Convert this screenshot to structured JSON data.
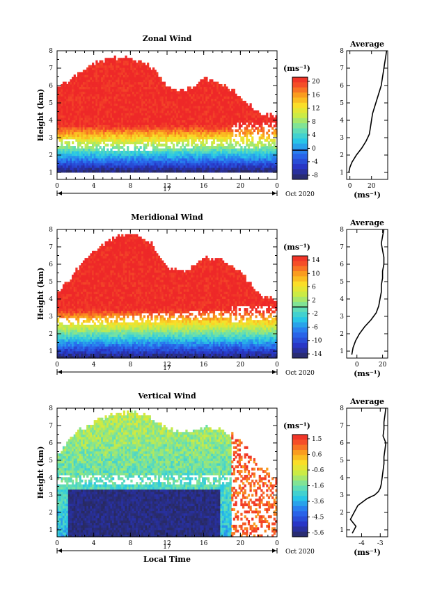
{
  "chart_data": [
    {
      "type": "heatmap",
      "title": "Zonal Wind",
      "ylabel": "Height (km)",
      "xlabel": "",
      "xlim": [
        0,
        24
      ],
      "ylim": [
        0.6,
        8.0
      ],
      "x_ticks": [
        "0",
        "4",
        "8",
        "12",
        "16",
        "20",
        "0"
      ],
      "y_ticks": [
        "1",
        "2",
        "3",
        "4",
        "5",
        "6",
        "7",
        "8"
      ],
      "date_label": "17",
      "month_label": "Oct 2020",
      "unit": "(ms⁻¹)",
      "colorbar": {
        "min": -8,
        "max": 20,
        "ticks": [
          "20",
          "16",
          "12",
          "8",
          "4",
          "0",
          "-4",
          "-8"
        ],
        "zero_line": 0
      },
      "field": {
        "low": -8,
        "high": 20,
        "base": 1.0,
        "shear_top": 3.9,
        "boundary": [
          2.2,
          2.0,
          1.9,
          1.95,
          2.05,
          2.2,
          2.15,
          2.35
        ]
      },
      "data_top": [
        5.8,
        6.6,
        7.3,
        7.6,
        7.6,
        7.2,
        6.0,
        5.7,
        6.4,
        6.1,
        5.4,
        4.4,
        4.2
      ],
      "avg": {
        "title": "Average",
        "xlabel": "(ms⁻¹)",
        "x_ticks": [
          "0",
          "20"
        ],
        "xlim": [
          -3,
          35
        ],
        "height": [
          1.0,
          1.3,
          1.6,
          2.0,
          2.4,
          2.8,
          3.2,
          3.6,
          4.0,
          4.4,
          4.8,
          5.2,
          5.6,
          6.0,
          6.4,
          6.8,
          7.2,
          7.6,
          8.0
        ],
        "value": [
          -1,
          0,
          2,
          6,
          11,
          15,
          18,
          19,
          20,
          21,
          23,
          25,
          27,
          29,
          30,
          31,
          32,
          33,
          34
        ]
      }
    },
    {
      "type": "heatmap",
      "title": "Meridional Wind",
      "ylabel": "Height (km)",
      "xlabel": "",
      "xlim": [
        0,
        24
      ],
      "ylim": [
        0.6,
        8.0
      ],
      "x_ticks": [
        "0",
        "4",
        "8",
        "12",
        "16",
        "20",
        "0"
      ],
      "y_ticks": [
        "1",
        "2",
        "3",
        "4",
        "5",
        "6",
        "7",
        "8"
      ],
      "date_label": "17",
      "month_label": "Oct 2020",
      "unit": "(ms⁻¹)",
      "colorbar": {
        "min": -14,
        "max": 14,
        "ticks": [
          "14",
          "10",
          "6",
          "2",
          "-2",
          "-6",
          "-10",
          "-14"
        ],
        "zero_line": 0
      },
      "field": {
        "low": -14,
        "high": 14,
        "base": 0.6,
        "shear_top": 3.6,
        "boundary": [
          2.2,
          2.15,
          2.3,
          2.35,
          2.45,
          2.55,
          2.5,
          2.6
        ]
      },
      "data_top": [
        4.3,
        5.6,
        6.8,
        7.5,
        7.8,
        7.4,
        5.8,
        5.6,
        6.4,
        6.2,
        5.6,
        4.2,
        3.9
      ],
      "avg": {
        "title": "Average",
        "xlabel": "(ms⁻¹)",
        "x_ticks": [
          "0",
          "20"
        ],
        "xlim": [
          -8,
          24
        ],
        "height": [
          0.8,
          1.2,
          1.6,
          2.0,
          2.4,
          2.8,
          3.2,
          3.6,
          4.0,
          4.4,
          4.8,
          5.2,
          5.6,
          6.0,
          6.4,
          6.8,
          7.2,
          7.6,
          8.0
        ],
        "value": [
          -4,
          -3,
          -1,
          2,
          6,
          11,
          15,
          17,
          18,
          19,
          19,
          20,
          20,
          21,
          21,
          20,
          19,
          20,
          21
        ]
      }
    },
    {
      "type": "heatmap",
      "title": "Vertical Wind",
      "ylabel": "Height (km)",
      "xlabel": "Local Time",
      "xlim": [
        0,
        24
      ],
      "ylim": [
        0.6,
        8.0
      ],
      "x_ticks": [
        "0",
        "4",
        "8",
        "12",
        "16",
        "20",
        "0"
      ],
      "y_ticks": [
        "1",
        "2",
        "3",
        "4",
        "5",
        "6",
        "7",
        "8"
      ],
      "date_label": "17",
      "month_label": "Oct 2020",
      "unit": "(ms⁻¹)",
      "colorbar": {
        "min": -5.6,
        "max": 1.5,
        "ticks": [
          "1.5",
          "0.6",
          "-0.6",
          "-1.6",
          "-3.6",
          "-4.5",
          "-5.6"
        ],
        "zero_line": null
      },
      "field": {
        "low": -5.6,
        "high": 1.5,
        "base": 0.6,
        "shear_top": 2.9,
        "boundary": [
          3.3,
          3.3,
          3.3,
          3.3,
          3.3,
          3.3,
          3.3,
          3.3
        ]
      },
      "data_top": [
        5.2,
        6.6,
        7.2,
        7.6,
        7.8,
        7.5,
        6.9,
        6.6,
        6.9,
        6.7,
        6.3,
        4.8,
        4.2
      ],
      "avg": {
        "title": "Average",
        "xlabel": "(ms⁻¹)",
        "x_ticks": [
          "-4",
          "-3"
        ],
        "xlim": [
          -4.8,
          -2.6
        ],
        "height": [
          0.8,
          1.2,
          1.6,
          2.0,
          2.4,
          2.8,
          3.0,
          3.2,
          3.4,
          3.6,
          4.0,
          4.4,
          4.8,
          5.2,
          5.6,
          6.0,
          6.4,
          6.8,
          7.2,
          7.6,
          8.0
        ],
        "value": [
          -4.5,
          -4.3,
          -4.6,
          -4.4,
          -4.2,
          -3.7,
          -3.3,
          -3.1,
          -3.0,
          -2.95,
          -2.9,
          -2.85,
          -2.8,
          -2.8,
          -2.75,
          -2.7,
          -2.85,
          -2.8,
          -2.8,
          -2.75,
          -2.7
        ]
      }
    }
  ]
}
